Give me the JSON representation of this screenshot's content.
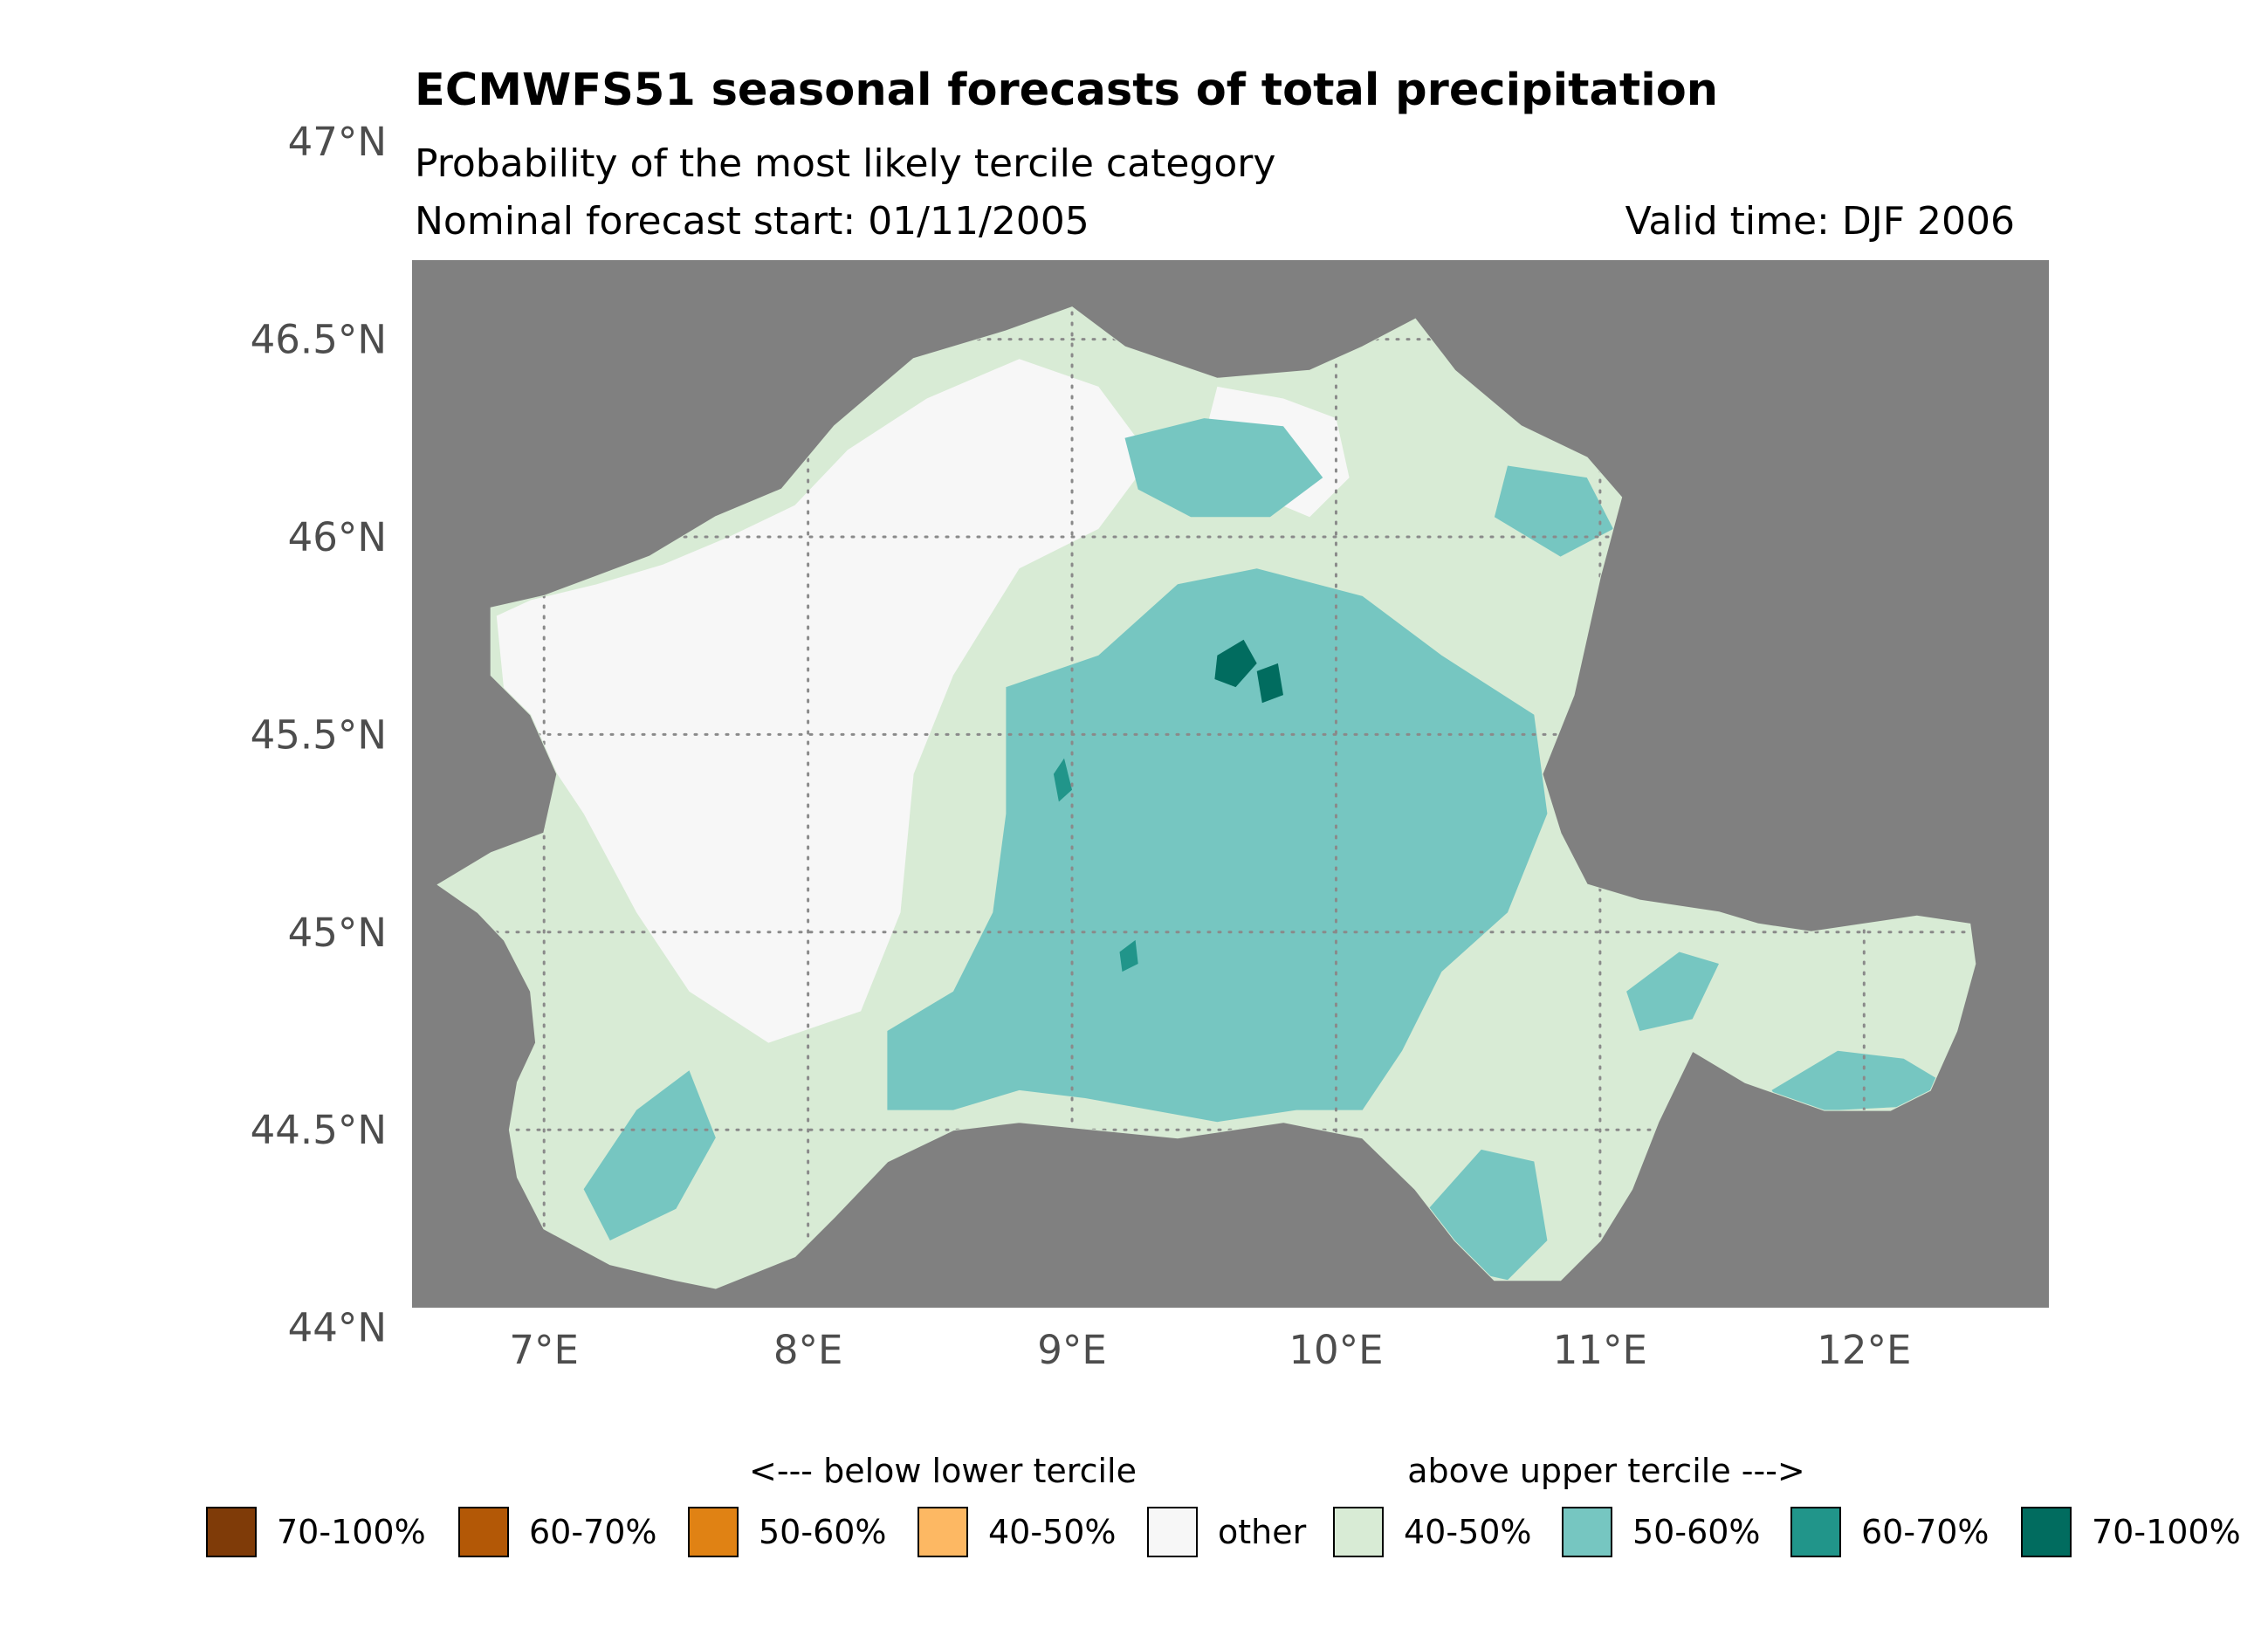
{
  "chart_data": {
    "type": "map",
    "title": "ECMWFS51 seasonal forecasts of total precipitation",
    "subtitle": "Probability of the most likely tercile category",
    "start_label": "Nominal forecast start: 01/11/2005",
    "valid_label": "Valid time: DJF 2006",
    "xlim": [
      6.5,
      12.7
    ],
    "ylim": [
      44.05,
      46.7
    ],
    "x_ticks": [
      {
        "value": 7,
        "label": "7°E"
      },
      {
        "value": 8,
        "label": "8°E"
      },
      {
        "value": 9,
        "label": "9°E"
      },
      {
        "value": 10,
        "label": "10°E"
      },
      {
        "value": 11,
        "label": "11°E"
      },
      {
        "value": 12,
        "label": "12°E"
      }
    ],
    "y_ticks": [
      {
        "value": 44.0,
        "label": "44°N"
      },
      {
        "value": 44.5,
        "label": "44.5°N"
      },
      {
        "value": 45.0,
        "label": "45°N"
      },
      {
        "value": 45.5,
        "label": "45.5°N"
      },
      {
        "value": 46.0,
        "label": "46°N"
      },
      {
        "value": 46.5,
        "label": "46.5°N"
      },
      {
        "value": 47.0,
        "label": "47°N"
      }
    ],
    "background_color": "#808080",
    "grid": "dotted",
    "legend": {
      "below_label": "<--- below lower tercile",
      "above_label": "above upper tercile --->",
      "entries": [
        {
          "label": "70-100%",
          "color": "#7f3b08"
        },
        {
          "label": "60-70%",
          "color": "#b35806"
        },
        {
          "label": "50-60%",
          "color": "#e08214"
        },
        {
          "label": "40-50%",
          "color": "#fdb863"
        },
        {
          "label": "other",
          "color": "#f7f7f7"
        },
        {
          "label": "40-50%",
          "color": "#d8ebd5"
        },
        {
          "label": "50-60%",
          "color": "#76c6c1"
        },
        {
          "label": "60-70%",
          "color": "#21958a"
        },
        {
          "label": "70-100%",
          "color": "#016c5f"
        }
      ]
    },
    "basin_outline": [
      [
        6.6,
        45.12
      ],
      [
        6.75,
        45.05
      ],
      [
        6.85,
        44.98
      ],
      [
        6.95,
        44.85
      ],
      [
        6.97,
        44.72
      ],
      [
        6.9,
        44.62
      ],
      [
        6.87,
        44.5
      ],
      [
        6.9,
        44.38
      ],
      [
        7.0,
        44.25
      ],
      [
        7.25,
        44.16
      ],
      [
        7.5,
        44.12
      ],
      [
        7.65,
        44.1
      ],
      [
        7.95,
        44.18
      ],
      [
        8.1,
        44.28
      ],
      [
        8.3,
        44.42
      ],
      [
        8.55,
        44.5
      ],
      [
        8.8,
        44.52
      ],
      [
        9.1,
        44.5
      ],
      [
        9.4,
        44.48
      ],
      [
        9.8,
        44.52
      ],
      [
        10.1,
        44.48
      ],
      [
        10.3,
        44.35
      ],
      [
        10.45,
        44.22
      ],
      [
        10.6,
        44.12
      ],
      [
        10.85,
        44.12
      ],
      [
        11.0,
        44.22
      ],
      [
        11.12,
        44.35
      ],
      [
        11.22,
        44.52
      ],
      [
        11.35,
        44.7
      ],
      [
        11.55,
        44.62
      ],
      [
        11.85,
        44.55
      ],
      [
        12.1,
        44.55
      ],
      [
        12.25,
        44.6
      ],
      [
        12.35,
        44.75
      ],
      [
        12.42,
        44.92
      ],
      [
        12.4,
        45.02
      ],
      [
        12.2,
        45.04
      ],
      [
        12.0,
        45.02
      ],
      [
        11.8,
        45.0
      ],
      [
        11.6,
        45.02
      ],
      [
        11.45,
        45.05
      ],
      [
        11.15,
        45.08
      ],
      [
        10.95,
        45.12
      ],
      [
        10.85,
        45.25
      ],
      [
        10.78,
        45.4
      ],
      [
        10.9,
        45.6
      ],
      [
        11.0,
        45.9
      ],
      [
        11.08,
        46.1
      ],
      [
        10.95,
        46.2
      ],
      [
        10.7,
        46.28
      ],
      [
        10.45,
        46.42
      ],
      [
        10.3,
        46.55
      ],
      [
        10.1,
        46.48
      ],
      [
        9.9,
        46.42
      ],
      [
        9.55,
        46.4
      ],
      [
        9.2,
        46.48
      ],
      [
        9.0,
        46.58
      ],
      [
        8.75,
        46.52
      ],
      [
        8.4,
        46.45
      ],
      [
        8.1,
        46.28
      ],
      [
        7.9,
        46.12
      ],
      [
        7.65,
        46.05
      ],
      [
        7.4,
        45.95
      ],
      [
        7.2,
        45.9
      ],
      [
        7.0,
        45.85
      ],
      [
        6.8,
        45.82
      ],
      [
        6.8,
        45.65
      ],
      [
        6.95,
        45.55
      ],
      [
        7.05,
        45.4
      ],
      [
        7.0,
        45.25
      ],
      [
        6.8,
        45.2
      ],
      [
        6.6,
        45.12
      ]
    ],
    "regions": [
      {
        "category": "other",
        "polygon": [
          [
            6.95,
            45.84
          ],
          [
            7.2,
            45.88
          ],
          [
            7.45,
            45.93
          ],
          [
            7.7,
            46.0
          ],
          [
            7.95,
            46.08
          ],
          [
            8.15,
            46.22
          ],
          [
            8.45,
            46.35
          ],
          [
            8.8,
            46.45
          ],
          [
            9.1,
            46.38
          ],
          [
            9.3,
            46.2
          ],
          [
            9.1,
            46.02
          ],
          [
            8.8,
            45.92
          ],
          [
            8.55,
            45.65
          ],
          [
            8.4,
            45.4
          ],
          [
            8.35,
            45.05
          ],
          [
            8.2,
            44.8
          ],
          [
            7.85,
            44.72
          ],
          [
            7.55,
            44.85
          ],
          [
            7.35,
            45.05
          ],
          [
            7.15,
            45.3
          ],
          [
            7.0,
            45.45
          ],
          [
            6.85,
            45.6
          ],
          [
            6.82,
            45.8
          ]
        ]
      },
      {
        "category": "other",
        "polygon": [
          [
            9.55,
            46.38
          ],
          [
            9.8,
            46.35
          ],
          [
            10.0,
            46.3
          ],
          [
            10.05,
            46.15
          ],
          [
            9.9,
            46.05
          ],
          [
            9.65,
            46.12
          ],
          [
            9.5,
            46.25
          ]
        ]
      },
      {
        "category": "above_50_60",
        "polygon": [
          [
            8.75,
            45.62
          ],
          [
            9.1,
            45.7
          ],
          [
            9.4,
            45.88
          ],
          [
            9.7,
            45.92
          ],
          [
            10.1,
            45.85
          ],
          [
            10.4,
            45.7
          ],
          [
            10.75,
            45.55
          ],
          [
            10.8,
            45.3
          ],
          [
            10.65,
            45.05
          ],
          [
            10.4,
            44.9
          ],
          [
            10.25,
            44.7
          ],
          [
            10.1,
            44.55
          ],
          [
            9.85,
            44.55
          ],
          [
            9.55,
            44.52
          ],
          [
            9.3,
            44.55
          ],
          [
            9.05,
            44.58
          ],
          [
            8.8,
            44.6
          ],
          [
            8.55,
            44.55
          ],
          [
            8.3,
            44.55
          ],
          [
            8.3,
            44.75
          ],
          [
            8.55,
            44.85
          ],
          [
            8.7,
            45.05
          ],
          [
            8.75,
            45.3
          ]
        ]
      },
      {
        "category": "above_50_60",
        "polygon": [
          [
            9.2,
            46.25
          ],
          [
            9.5,
            46.3
          ],
          [
            9.8,
            46.28
          ],
          [
            9.95,
            46.15
          ],
          [
            9.75,
            46.05
          ],
          [
            9.45,
            46.05
          ],
          [
            9.25,
            46.12
          ]
        ]
      },
      {
        "category": "above_50_60",
        "polygon": [
          [
            10.65,
            46.18
          ],
          [
            10.95,
            46.15
          ],
          [
            11.05,
            46.02
          ],
          [
            10.85,
            45.95
          ],
          [
            10.6,
            46.05
          ]
        ]
      },
      {
        "category": "above_50_60",
        "polygon": [
          [
            7.15,
            44.35
          ],
          [
            7.35,
            44.55
          ],
          [
            7.55,
            44.65
          ],
          [
            7.65,
            44.48
          ],
          [
            7.5,
            44.3
          ],
          [
            7.25,
            44.22
          ]
        ]
      },
      {
        "category": "above_50_60",
        "polygon": [
          [
            10.35,
            44.3
          ],
          [
            10.55,
            44.45
          ],
          [
            10.75,
            44.42
          ],
          [
            10.8,
            44.22
          ],
          [
            10.65,
            44.12
          ],
          [
            10.45,
            44.15
          ]
        ]
      },
      {
        "category": "above_50_60",
        "polygon": [
          [
            11.65,
            44.6
          ],
          [
            11.9,
            44.7
          ],
          [
            12.15,
            44.68
          ],
          [
            12.3,
            44.62
          ],
          [
            12.2,
            44.56
          ],
          [
            11.9,
            44.55
          ],
          [
            11.7,
            44.55
          ]
        ]
      },
      {
        "category": "above_50_60",
        "polygon": [
          [
            11.1,
            44.85
          ],
          [
            11.3,
            44.95
          ],
          [
            11.45,
            44.92
          ],
          [
            11.35,
            44.78
          ],
          [
            11.15,
            44.75
          ]
        ]
      },
      {
        "category": "above_70_100",
        "polygon": [
          [
            9.55,
            45.7
          ],
          [
            9.65,
            45.74
          ],
          [
            9.7,
            45.68
          ],
          [
            9.62,
            45.62
          ],
          [
            9.54,
            45.64
          ]
        ]
      },
      {
        "category": "above_70_100",
        "polygon": [
          [
            9.7,
            45.66
          ],
          [
            9.78,
            45.68
          ],
          [
            9.8,
            45.6
          ],
          [
            9.72,
            45.58
          ]
        ]
      },
      {
        "category": "above_60_70",
        "polygon": [
          [
            8.93,
            45.4
          ],
          [
            8.97,
            45.44
          ],
          [
            9.0,
            45.36
          ],
          [
            8.95,
            45.33
          ]
        ]
      },
      {
        "category": "above_60_70",
        "polygon": [
          [
            9.18,
            44.95
          ],
          [
            9.24,
            44.98
          ],
          [
            9.25,
            44.92
          ],
          [
            9.19,
            44.9
          ]
        ]
      }
    ]
  }
}
